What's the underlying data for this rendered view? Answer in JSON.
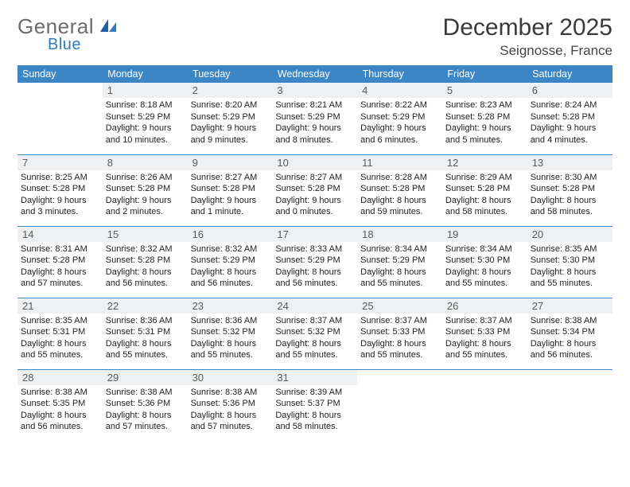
{
  "brand": {
    "name1": "General",
    "name2": "Blue"
  },
  "title": "December 2025",
  "location": "Seignosse, France",
  "colors": {
    "header_bg": "#3d86c6",
    "header_text": "#ffffff",
    "daynum_bg": "#eef0f2",
    "daynum_text": "#5a5a5a",
    "rule": "#3d86c6",
    "brand_gray": "#6b6b6b",
    "brand_blue": "#2f7bbf",
    "page_bg": "#ffffff"
  },
  "weekdays": [
    "Sunday",
    "Monday",
    "Tuesday",
    "Wednesday",
    "Thursday",
    "Friday",
    "Saturday"
  ],
  "weeks": [
    [
      null,
      {
        "n": "1",
        "sr": "Sunrise: 8:18 AM",
        "ss": "Sunset: 5:29 PM",
        "dl": "Daylight: 9 hours and 10 minutes."
      },
      {
        "n": "2",
        "sr": "Sunrise: 8:20 AM",
        "ss": "Sunset: 5:29 PM",
        "dl": "Daylight: 9 hours and 9 minutes."
      },
      {
        "n": "3",
        "sr": "Sunrise: 8:21 AM",
        "ss": "Sunset: 5:29 PM",
        "dl": "Daylight: 9 hours and 8 minutes."
      },
      {
        "n": "4",
        "sr": "Sunrise: 8:22 AM",
        "ss": "Sunset: 5:29 PM",
        "dl": "Daylight: 9 hours and 6 minutes."
      },
      {
        "n": "5",
        "sr": "Sunrise: 8:23 AM",
        "ss": "Sunset: 5:28 PM",
        "dl": "Daylight: 9 hours and 5 minutes."
      },
      {
        "n": "6",
        "sr": "Sunrise: 8:24 AM",
        "ss": "Sunset: 5:28 PM",
        "dl": "Daylight: 9 hours and 4 minutes."
      }
    ],
    [
      {
        "n": "7",
        "sr": "Sunrise: 8:25 AM",
        "ss": "Sunset: 5:28 PM",
        "dl": "Daylight: 9 hours and 3 minutes."
      },
      {
        "n": "8",
        "sr": "Sunrise: 8:26 AM",
        "ss": "Sunset: 5:28 PM",
        "dl": "Daylight: 9 hours and 2 minutes."
      },
      {
        "n": "9",
        "sr": "Sunrise: 8:27 AM",
        "ss": "Sunset: 5:28 PM",
        "dl": "Daylight: 9 hours and 1 minute."
      },
      {
        "n": "10",
        "sr": "Sunrise: 8:27 AM",
        "ss": "Sunset: 5:28 PM",
        "dl": "Daylight: 9 hours and 0 minutes."
      },
      {
        "n": "11",
        "sr": "Sunrise: 8:28 AM",
        "ss": "Sunset: 5:28 PM",
        "dl": "Daylight: 8 hours and 59 minutes."
      },
      {
        "n": "12",
        "sr": "Sunrise: 8:29 AM",
        "ss": "Sunset: 5:28 PM",
        "dl": "Daylight: 8 hours and 58 minutes."
      },
      {
        "n": "13",
        "sr": "Sunrise: 8:30 AM",
        "ss": "Sunset: 5:28 PM",
        "dl": "Daylight: 8 hours and 58 minutes."
      }
    ],
    [
      {
        "n": "14",
        "sr": "Sunrise: 8:31 AM",
        "ss": "Sunset: 5:28 PM",
        "dl": "Daylight: 8 hours and 57 minutes."
      },
      {
        "n": "15",
        "sr": "Sunrise: 8:32 AM",
        "ss": "Sunset: 5:28 PM",
        "dl": "Daylight: 8 hours and 56 minutes."
      },
      {
        "n": "16",
        "sr": "Sunrise: 8:32 AM",
        "ss": "Sunset: 5:29 PM",
        "dl": "Daylight: 8 hours and 56 minutes."
      },
      {
        "n": "17",
        "sr": "Sunrise: 8:33 AM",
        "ss": "Sunset: 5:29 PM",
        "dl": "Daylight: 8 hours and 56 minutes."
      },
      {
        "n": "18",
        "sr": "Sunrise: 8:34 AM",
        "ss": "Sunset: 5:29 PM",
        "dl": "Daylight: 8 hours and 55 minutes."
      },
      {
        "n": "19",
        "sr": "Sunrise: 8:34 AM",
        "ss": "Sunset: 5:30 PM",
        "dl": "Daylight: 8 hours and 55 minutes."
      },
      {
        "n": "20",
        "sr": "Sunrise: 8:35 AM",
        "ss": "Sunset: 5:30 PM",
        "dl": "Daylight: 8 hours and 55 minutes."
      }
    ],
    [
      {
        "n": "21",
        "sr": "Sunrise: 8:35 AM",
        "ss": "Sunset: 5:31 PM",
        "dl": "Daylight: 8 hours and 55 minutes."
      },
      {
        "n": "22",
        "sr": "Sunrise: 8:36 AM",
        "ss": "Sunset: 5:31 PM",
        "dl": "Daylight: 8 hours and 55 minutes."
      },
      {
        "n": "23",
        "sr": "Sunrise: 8:36 AM",
        "ss": "Sunset: 5:32 PM",
        "dl": "Daylight: 8 hours and 55 minutes."
      },
      {
        "n": "24",
        "sr": "Sunrise: 8:37 AM",
        "ss": "Sunset: 5:32 PM",
        "dl": "Daylight: 8 hours and 55 minutes."
      },
      {
        "n": "25",
        "sr": "Sunrise: 8:37 AM",
        "ss": "Sunset: 5:33 PM",
        "dl": "Daylight: 8 hours and 55 minutes."
      },
      {
        "n": "26",
        "sr": "Sunrise: 8:37 AM",
        "ss": "Sunset: 5:33 PM",
        "dl": "Daylight: 8 hours and 55 minutes."
      },
      {
        "n": "27",
        "sr": "Sunrise: 8:38 AM",
        "ss": "Sunset: 5:34 PM",
        "dl": "Daylight: 8 hours and 56 minutes."
      }
    ],
    [
      {
        "n": "28",
        "sr": "Sunrise: 8:38 AM",
        "ss": "Sunset: 5:35 PM",
        "dl": "Daylight: 8 hours and 56 minutes."
      },
      {
        "n": "29",
        "sr": "Sunrise: 8:38 AM",
        "ss": "Sunset: 5:36 PM",
        "dl": "Daylight: 8 hours and 57 minutes."
      },
      {
        "n": "30",
        "sr": "Sunrise: 8:38 AM",
        "ss": "Sunset: 5:36 PM",
        "dl": "Daylight: 8 hours and 57 minutes."
      },
      {
        "n": "31",
        "sr": "Sunrise: 8:39 AM",
        "ss": "Sunset: 5:37 PM",
        "dl": "Daylight: 8 hours and 58 minutes."
      },
      null,
      null,
      null
    ]
  ]
}
